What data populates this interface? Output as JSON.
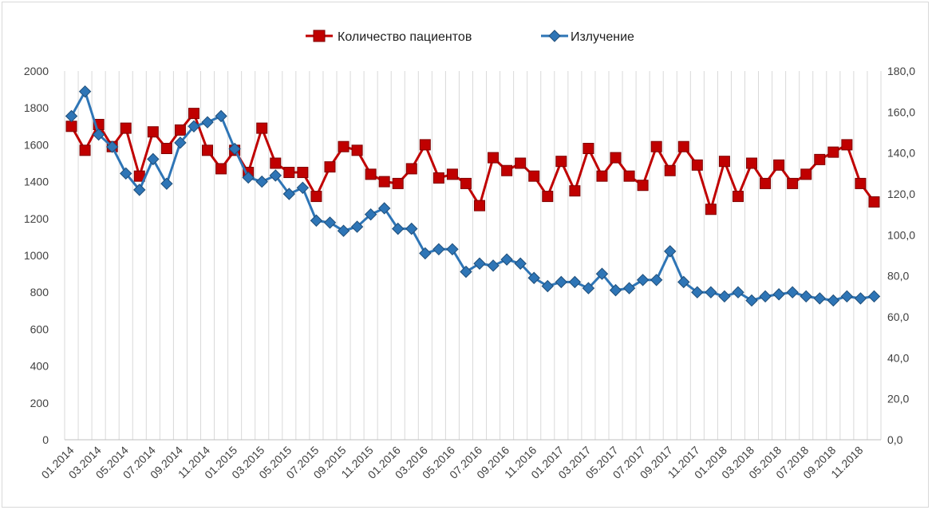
{
  "chart_data": {
    "type": "line",
    "title": "",
    "xlabel": "",
    "ylabel": "",
    "y2label": "",
    "grid": "vertical",
    "legend_position": "top-center",
    "ylim": [
      0,
      2000
    ],
    "y2lim": [
      0,
      180
    ],
    "y_ticks": [
      "0",
      "200",
      "400",
      "600",
      "800",
      "1000",
      "1200",
      "1400",
      "1600",
      "1800",
      "2000"
    ],
    "y2_ticks": [
      "0,0",
      "20,0",
      "40,0",
      "60,0",
      "80,0",
      "100,0",
      "120,0",
      "140,0",
      "160,0",
      "180,0"
    ],
    "x_tick_labels": [
      "01.2014",
      "03.2014",
      "05.2014",
      "07.2014",
      "09.2014",
      "11.2014",
      "01.2015",
      "03.2015",
      "05.2015",
      "07.2015",
      "09.2015",
      "11.2015",
      "01.2016",
      "03.2016",
      "05.2016",
      "07.2016",
      "09.2016",
      "11.2016",
      "01.2017",
      "03.2017",
      "05.2017",
      "07.2017",
      "09.2017",
      "11.2017",
      "01.2018",
      "03.2018",
      "05.2018",
      "07.2018",
      "09.2018",
      "11.2018"
    ],
    "months": 60,
    "series": [
      {
        "name": "Количество пациентов",
        "axis": "left",
        "color": "#c00000",
        "marker": "square",
        "values": [
          1700,
          1570,
          1710,
          1590,
          1690,
          1430,
          1670,
          1580,
          1680,
          1770,
          1570,
          1470,
          1570,
          1450,
          1690,
          1500,
          1450,
          1450,
          1320,
          1480,
          1590,
          1570,
          1440,
          1400,
          1390,
          1470,
          1600,
          1420,
          1440,
          1390,
          1270,
          1530,
          1460,
          1500,
          1430,
          1320,
          1510,
          1350,
          1580,
          1430,
          1530,
          1430,
          1380,
          1590,
          1460,
          1590,
          1490,
          1250,
          1510,
          1320,
          1500,
          1390,
          1490,
          1390,
          1440,
          1520,
          1560,
          1600,
          1390,
          1290
        ]
      },
      {
        "name": "Излучение",
        "axis": "right",
        "color": "#2e75b6",
        "marker": "diamond",
        "values": [
          158,
          170,
          149,
          143,
          130,
          122,
          137,
          125,
          145,
          153,
          155,
          158,
          142,
          128,
          126,
          129,
          120,
          123,
          107,
          106,
          102,
          104,
          110,
          113,
          103,
          103,
          91,
          93,
          93,
          82,
          86,
          85,
          88,
          86,
          79,
          75,
          77,
          77,
          74,
          81,
          73,
          74,
          78,
          78,
          92,
          77,
          72,
          72,
          70,
          72,
          68,
          70,
          71,
          72,
          70,
          69,
          68,
          70,
          69,
          70
        ]
      }
    ]
  }
}
